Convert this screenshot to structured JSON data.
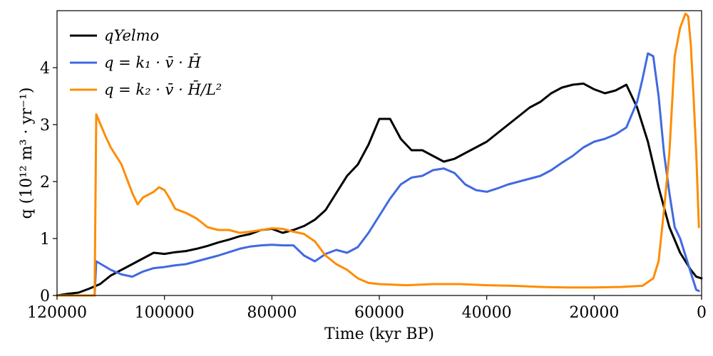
{
  "chart_data": {
    "type": "line",
    "xlabel": "Time (kyr BP)",
    "ylabel": "q (10¹² m³ · yr⁻¹)",
    "xlim": [
      120000,
      0
    ],
    "ylim": [
      0,
      5
    ],
    "x_ticks": [
      120000,
      100000,
      80000,
      60000,
      40000,
      20000,
      0
    ],
    "x_tick_labels": [
      "120000",
      "100000",
      "80000",
      "60000",
      "40000",
      "20000",
      "0"
    ],
    "y_ticks": [
      0,
      1,
      2,
      3,
      4
    ],
    "y_tick_labels": [
      "0",
      "1",
      "2",
      "3",
      "4"
    ],
    "grid": false,
    "legend_position": "top-left",
    "series": [
      {
        "name": "qYelmo",
        "color": "#000000",
        "points": [
          [
            120000,
            0
          ],
          [
            118000,
            0.03
          ],
          [
            116000,
            0.05
          ],
          [
            114000,
            0.12
          ],
          [
            112000,
            0.2
          ],
          [
            110000,
            0.35
          ],
          [
            108000,
            0.45
          ],
          [
            106000,
            0.55
          ],
          [
            104000,
            0.65
          ],
          [
            102000,
            0.75
          ],
          [
            100000,
            0.73
          ],
          [
            98000,
            0.76
          ],
          [
            96000,
            0.78
          ],
          [
            94000,
            0.82
          ],
          [
            92000,
            0.87
          ],
          [
            90000,
            0.93
          ],
          [
            88000,
            0.98
          ],
          [
            86000,
            1.04
          ],
          [
            84000,
            1.08
          ],
          [
            82000,
            1.15
          ],
          [
            80000,
            1.17
          ],
          [
            78000,
            1.1
          ],
          [
            76000,
            1.15
          ],
          [
            74000,
            1.22
          ],
          [
            72000,
            1.33
          ],
          [
            70000,
            1.5
          ],
          [
            68000,
            1.8
          ],
          [
            66000,
            2.1
          ],
          [
            64000,
            2.3
          ],
          [
            62000,
            2.65
          ],
          [
            60000,
            3.1
          ],
          [
            58000,
            3.1
          ],
          [
            56000,
            2.75
          ],
          [
            54000,
            2.55
          ],
          [
            52000,
            2.55
          ],
          [
            50000,
            2.45
          ],
          [
            48000,
            2.35
          ],
          [
            46000,
            2.4
          ],
          [
            44000,
            2.5
          ],
          [
            42000,
            2.6
          ],
          [
            40000,
            2.7
          ],
          [
            38000,
            2.85
          ],
          [
            36000,
            3.0
          ],
          [
            34000,
            3.15
          ],
          [
            32000,
            3.3
          ],
          [
            30000,
            3.4
          ],
          [
            28000,
            3.55
          ],
          [
            26000,
            3.65
          ],
          [
            24000,
            3.7
          ],
          [
            22000,
            3.72
          ],
          [
            20000,
            3.62
          ],
          [
            18000,
            3.55
          ],
          [
            16000,
            3.6
          ],
          [
            14000,
            3.7
          ],
          [
            12000,
            3.3
          ],
          [
            10000,
            2.7
          ],
          [
            8000,
            1.9
          ],
          [
            6000,
            1.2
          ],
          [
            4000,
            0.75
          ],
          [
            2000,
            0.45
          ],
          [
            1000,
            0.33
          ],
          [
            0,
            0.3
          ]
        ]
      },
      {
        "name": "q = k₁ · v̄ · H̄",
        "color": "#4169e1",
        "points": [
          [
            120000,
            0
          ],
          [
            113000,
            0
          ],
          [
            112700,
            0.6
          ],
          [
            110000,
            0.45
          ],
          [
            108000,
            0.37
          ],
          [
            106000,
            0.33
          ],
          [
            104000,
            0.42
          ],
          [
            102000,
            0.48
          ],
          [
            100000,
            0.5
          ],
          [
            98000,
            0.53
          ],
          [
            96000,
            0.55
          ],
          [
            94000,
            0.6
          ],
          [
            92000,
            0.65
          ],
          [
            90000,
            0.7
          ],
          [
            88000,
            0.76
          ],
          [
            86000,
            0.82
          ],
          [
            84000,
            0.86
          ],
          [
            82000,
            0.88
          ],
          [
            80000,
            0.89
          ],
          [
            78000,
            0.88
          ],
          [
            76000,
            0.88
          ],
          [
            74000,
            0.7
          ],
          [
            72000,
            0.6
          ],
          [
            70000,
            0.73
          ],
          [
            68000,
            0.8
          ],
          [
            66000,
            0.75
          ],
          [
            64000,
            0.85
          ],
          [
            62000,
            1.1
          ],
          [
            60000,
            1.4
          ],
          [
            58000,
            1.7
          ],
          [
            56000,
            1.95
          ],
          [
            54000,
            2.07
          ],
          [
            52000,
            2.1
          ],
          [
            50000,
            2.2
          ],
          [
            48000,
            2.23
          ],
          [
            46000,
            2.15
          ],
          [
            44000,
            1.95
          ],
          [
            42000,
            1.85
          ],
          [
            40000,
            1.82
          ],
          [
            38000,
            1.88
          ],
          [
            36000,
            1.95
          ],
          [
            34000,
            2.0
          ],
          [
            32000,
            2.05
          ],
          [
            30000,
            2.1
          ],
          [
            28000,
            2.2
          ],
          [
            26000,
            2.33
          ],
          [
            24000,
            2.45
          ],
          [
            22000,
            2.6
          ],
          [
            20000,
            2.7
          ],
          [
            18000,
            2.75
          ],
          [
            16000,
            2.83
          ],
          [
            14000,
            2.95
          ],
          [
            12000,
            3.4
          ],
          [
            11000,
            3.8
          ],
          [
            10000,
            4.25
          ],
          [
            9000,
            4.2
          ],
          [
            8000,
            3.5
          ],
          [
            7000,
            2.5
          ],
          [
            6000,
            1.8
          ],
          [
            5000,
            1.2
          ],
          [
            4000,
            1.0
          ],
          [
            3000,
            0.7
          ],
          [
            2000,
            0.4
          ],
          [
            1000,
            0.1
          ],
          [
            500,
            0.08
          ]
        ]
      },
      {
        "name": "q = k₂ · v̄ · H̄/L²",
        "color": "#ff8c00",
        "points": [
          [
            120000,
            0
          ],
          [
            113000,
            0
          ],
          [
            112700,
            3.18
          ],
          [
            111000,
            2.8
          ],
          [
            110000,
            2.6
          ],
          [
            108000,
            2.3
          ],
          [
            107000,
            2.05
          ],
          [
            106000,
            1.8
          ],
          [
            105000,
            1.6
          ],
          [
            104000,
            1.72
          ],
          [
            102000,
            1.82
          ],
          [
            101000,
            1.9
          ],
          [
            100000,
            1.85
          ],
          [
            99000,
            1.7
          ],
          [
            98000,
            1.52
          ],
          [
            96000,
            1.45
          ],
          [
            94000,
            1.35
          ],
          [
            92000,
            1.2
          ],
          [
            90000,
            1.15
          ],
          [
            88000,
            1.15
          ],
          [
            86000,
            1.1
          ],
          [
            84000,
            1.12
          ],
          [
            82000,
            1.15
          ],
          [
            80000,
            1.18
          ],
          [
            78000,
            1.17
          ],
          [
            76000,
            1.12
          ],
          [
            74000,
            1.08
          ],
          [
            72000,
            0.95
          ],
          [
            70000,
            0.7
          ],
          [
            68000,
            0.55
          ],
          [
            66000,
            0.45
          ],
          [
            64000,
            0.3
          ],
          [
            62000,
            0.22
          ],
          [
            60000,
            0.2
          ],
          [
            55000,
            0.18
          ],
          [
            50000,
            0.2
          ],
          [
            45000,
            0.2
          ],
          [
            40000,
            0.18
          ],
          [
            35000,
            0.17
          ],
          [
            30000,
            0.15
          ],
          [
            25000,
            0.14
          ],
          [
            20000,
            0.14
          ],
          [
            15000,
            0.15
          ],
          [
            11000,
            0.17
          ],
          [
            9000,
            0.3
          ],
          [
            8000,
            0.6
          ],
          [
            7000,
            1.5
          ],
          [
            6000,
            2.5
          ],
          [
            5000,
            4.2
          ],
          [
            4000,
            4.7
          ],
          [
            3000,
            4.95
          ],
          [
            2500,
            4.9
          ],
          [
            2000,
            4.4
          ],
          [
            1500,
            3.5
          ],
          [
            1000,
            2.5
          ],
          [
            500,
            1.2
          ]
        ]
      }
    ]
  },
  "legend": {
    "items": [
      {
        "label": "qYelmo",
        "color": "#000000"
      },
      {
        "label": "q = k₁ · v̄ · H̄",
        "color": "#4169e1"
      },
      {
        "label": "q = k₂ · v̄ · H̄/L²",
        "color": "#ff8c00"
      }
    ]
  }
}
